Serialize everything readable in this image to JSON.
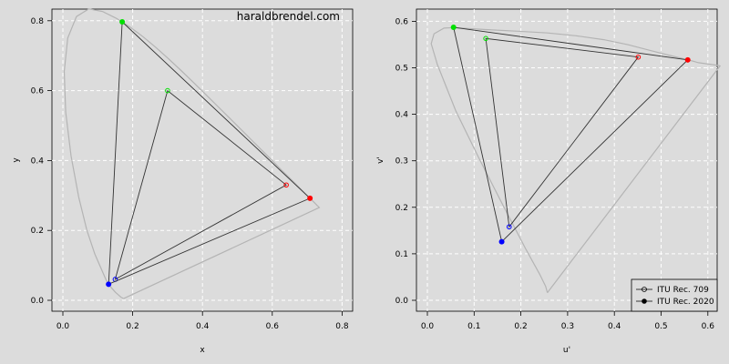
{
  "watermark": "haraldbrendel.com",
  "chart_data": [
    {
      "type": "line",
      "subtype": "CIE 1931 xy chromaticity diagram",
      "xlabel": "x",
      "ylabel": "y",
      "xlim": [
        0,
        0.8
      ],
      "ylim": [
        0,
        0.8
      ],
      "xticks": [
        "0.0",
        "0.2",
        "0.4",
        "0.6",
        "0.8"
      ],
      "yticks": [
        "0.0",
        "0.2",
        "0.4",
        "0.6",
        "0.8"
      ],
      "grid": true,
      "locus": [
        [
          0.1741,
          0.005
        ],
        [
          0.1666,
          0.0089
        ],
        [
          0.151,
          0.0227
        ],
        [
          0.1355,
          0.0399
        ],
        [
          0.1241,
          0.0578
        ],
        [
          0.0913,
          0.1327
        ],
        [
          0.0687,
          0.2007
        ],
        [
          0.0454,
          0.295
        ],
        [
          0.0235,
          0.4127
        ],
        [
          0.0082,
          0.5384
        ],
        [
          0.0039,
          0.6548
        ],
        [
          0.0139,
          0.7502
        ],
        [
          0.0389,
          0.812
        ],
        [
          0.0743,
          0.8338
        ],
        [
          0.1142,
          0.8262
        ],
        [
          0.1547,
          0.8059
        ],
        [
          0.1929,
          0.7816
        ],
        [
          0.2296,
          0.7543
        ],
        [
          0.2658,
          0.7243
        ],
        [
          0.3016,
          0.6923
        ],
        [
          0.3373,
          0.6589
        ],
        [
          0.3731,
          0.6245
        ],
        [
          0.4087,
          0.5896
        ],
        [
          0.4441,
          0.5547
        ],
        [
          0.4788,
          0.5202
        ],
        [
          0.5125,
          0.4866
        ],
        [
          0.5448,
          0.4544
        ],
        [
          0.5752,
          0.4242
        ],
        [
          0.6029,
          0.3965
        ],
        [
          0.627,
          0.3725
        ],
        [
          0.6482,
          0.3514
        ],
        [
          0.6658,
          0.334
        ],
        [
          0.6801,
          0.3197
        ],
        [
          0.6915,
          0.3083
        ],
        [
          0.7006,
          0.2993
        ],
        [
          0.7079,
          0.292
        ],
        [
          0.714,
          0.2859
        ],
        [
          0.719,
          0.2809
        ],
        [
          0.723,
          0.277
        ],
        [
          0.726,
          0.274
        ],
        [
          0.7283,
          0.2717
        ],
        [
          0.73,
          0.27
        ],
        [
          0.7347,
          0.2653
        ],
        [
          0.1741,
          0.005
        ]
      ],
      "series": [
        {
          "name": "ITU Rec. 709",
          "marker": "open",
          "points": {
            "red": [
              0.64,
              0.33
            ],
            "green": [
              0.3,
              0.6
            ],
            "blue": [
              0.15,
              0.06
            ]
          }
        },
        {
          "name": "ITU Rec. 2020",
          "marker": "filled",
          "points": {
            "red": [
              0.708,
              0.292
            ],
            "green": [
              0.17,
              0.797
            ],
            "blue": [
              0.131,
              0.046
            ]
          }
        }
      ]
    },
    {
      "type": "line",
      "subtype": "CIE 1976 u'v' chromaticity diagram",
      "xlabel": "u'",
      "ylabel": "v'",
      "xlim": [
        0,
        0.6
      ],
      "ylim": [
        0,
        0.6
      ],
      "xticks": [
        "0.0",
        "0.1",
        "0.2",
        "0.3",
        "0.4",
        "0.5",
        "0.6"
      ],
      "yticks": [
        "0.0",
        "0.1",
        "0.2",
        "0.3",
        "0.4",
        "0.5",
        "0.6"
      ],
      "grid": true,
      "legend": {
        "placement": "bottom-right",
        "entries": [
          "ITU Rec. 709",
          "ITU Rec. 2020"
        ]
      },
      "locus": [
        [
          0.2568,
          0.0165
        ],
        [
          0.253,
          0.03
        ],
        [
          0.2404,
          0.056
        ],
        [
          0.211,
          0.1094
        ],
        [
          0.1617,
          0.2044
        ],
        [
          0.1101,
          0.306
        ],
        [
          0.0608,
          0.4072
        ],
        [
          0.0214,
          0.5068
        ],
        [
          0.0082,
          0.5519
        ],
        [
          0.0143,
          0.5731
        ],
        [
          0.0357,
          0.5853
        ],
        [
          0.0555,
          0.5865
        ],
        [
          0.1245,
          0.5822
        ],
        [
          0.1939,
          0.5786
        ],
        [
          0.2571,
          0.575
        ],
        [
          0.3181,
          0.5688
        ],
        [
          0.3773,
          0.5604
        ],
        [
          0.4289,
          0.5497
        ],
        [
          0.4757,
          0.5375
        ],
        [
          0.5231,
          0.5254
        ],
        [
          0.5581,
          0.517
        ],
        [
          0.58,
          0.511
        ],
        [
          0.601,
          0.508
        ],
        [
          0.6234,
          0.5048
        ],
        [
          0.626,
          0.504
        ],
        [
          0.2568,
          0.0165
        ]
      ],
      "series": [
        {
          "name": "ITU Rec. 709",
          "marker": "open",
          "points": {
            "red": [
              0.451,
              0.523
            ],
            "green": [
              0.125,
              0.563
            ],
            "blue": [
              0.175,
              0.158
            ]
          }
        },
        {
          "name": "ITU Rec. 2020",
          "marker": "filled",
          "points": {
            "red": [
              0.557,
              0.517
            ],
            "green": [
              0.056,
              0.587
            ],
            "blue": [
              0.159,
              0.126
            ]
          }
        }
      ]
    }
  ]
}
